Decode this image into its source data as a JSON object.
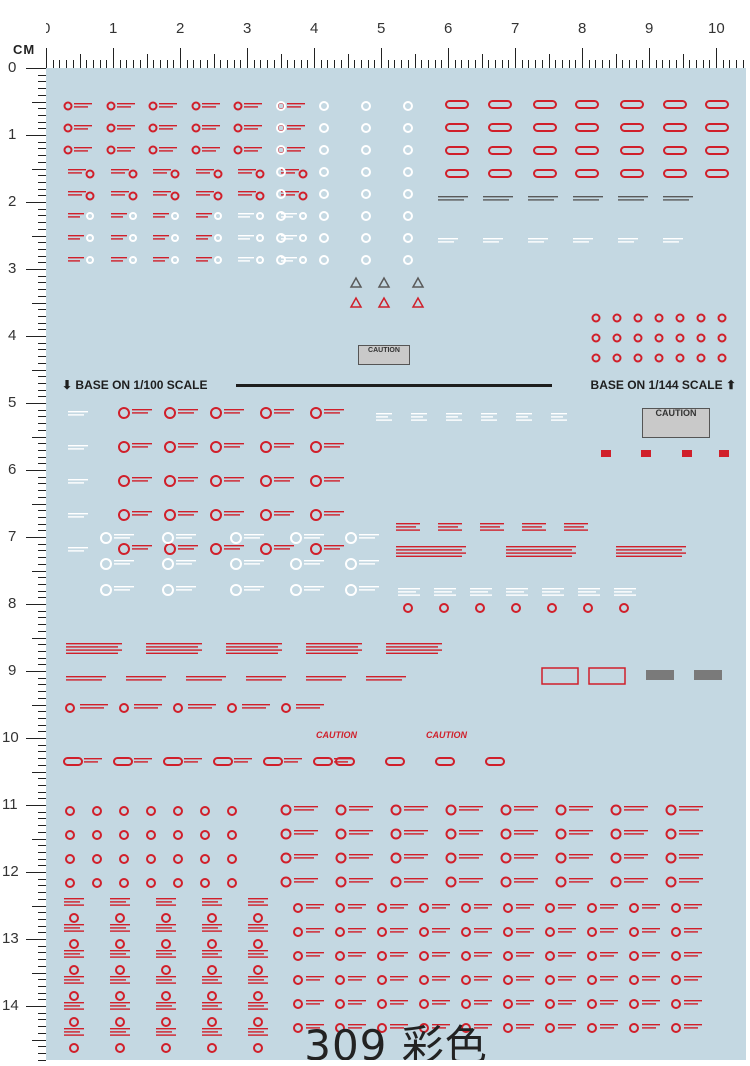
{
  "ruler": {
    "unit_label": "CM",
    "top_numbers": [
      "0",
      "1",
      "2",
      "3",
      "4",
      "5",
      "6",
      "7",
      "8",
      "9",
      "10"
    ],
    "left_numbers": [
      "0",
      "1",
      "2",
      "3",
      "4",
      "5",
      "6",
      "7",
      "8",
      "9",
      "10",
      "11",
      "12",
      "13",
      "14"
    ]
  },
  "sheet": {
    "scale_left": "BASE ON 1/100 SCALE",
    "scale_right": "BASE ON 1/144 SCALE",
    "caution_text": "CAUTION",
    "caution_red_1": "CAUTION",
    "caution_red_2": "CAUTION",
    "caution_small": "CAUTION"
  },
  "colors": {
    "sheet_background": "#c4d8e2",
    "decal_red": "#d01f2a",
    "decal_white": "#ffffff",
    "decal_grey": "#5a5a5a"
  },
  "footer": {
    "product_code": "309 彩色"
  }
}
